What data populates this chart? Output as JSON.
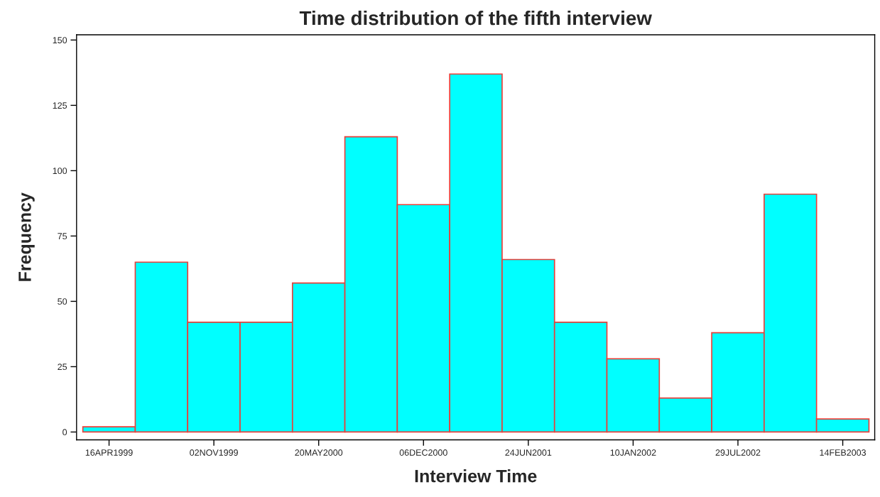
{
  "chart_data": {
    "type": "histogram",
    "title": "Time distribution of the fifth interview",
    "xlabel": "Interview Time",
    "ylabel": "Frequency",
    "bins": [
      "1999-02-25",
      "1999-06-05",
      "1999-09-13",
      "1999-12-22",
      "2000-03-31",
      "2000-07-09",
      "2000-10-17",
      "2001-01-25",
      "2001-05-05",
      "2001-08-13",
      "2001-11-21",
      "2002-03-01",
      "2002-06-09",
      "2002-09-17",
      "2002-12-26",
      "2003-04-05"
    ],
    "values": [
      2,
      65,
      42,
      42,
      57,
      113,
      87,
      137,
      66,
      42,
      28,
      13,
      38,
      91,
      5
    ],
    "color": "#00ffff",
    "xlim": [
      "1999-02-13",
      "2003-04-16"
    ],
    "xticks": [
      {
        "value": "1999-04-16",
        "label": "16APR1999"
      },
      {
        "value": "1999-11-02",
        "label": "02NOV1999"
      },
      {
        "value": "2000-05-20",
        "label": "20MAY2000"
      },
      {
        "value": "2000-12-06",
        "label": "06DEC2000"
      },
      {
        "value": "2001-06-24",
        "label": "24JUN2001"
      },
      {
        "value": "2002-01-10",
        "label": "10JAN2002"
      },
      {
        "value": "2002-07-29",
        "label": "29JUL2002"
      },
      {
        "value": "2003-02-14",
        "label": "14FEB2003"
      }
    ],
    "ylim": [
      -3,
      152
    ],
    "yticks": [
      0,
      25,
      50,
      75,
      100,
      125,
      150
    ],
    "grid": false,
    "legend": false
  }
}
